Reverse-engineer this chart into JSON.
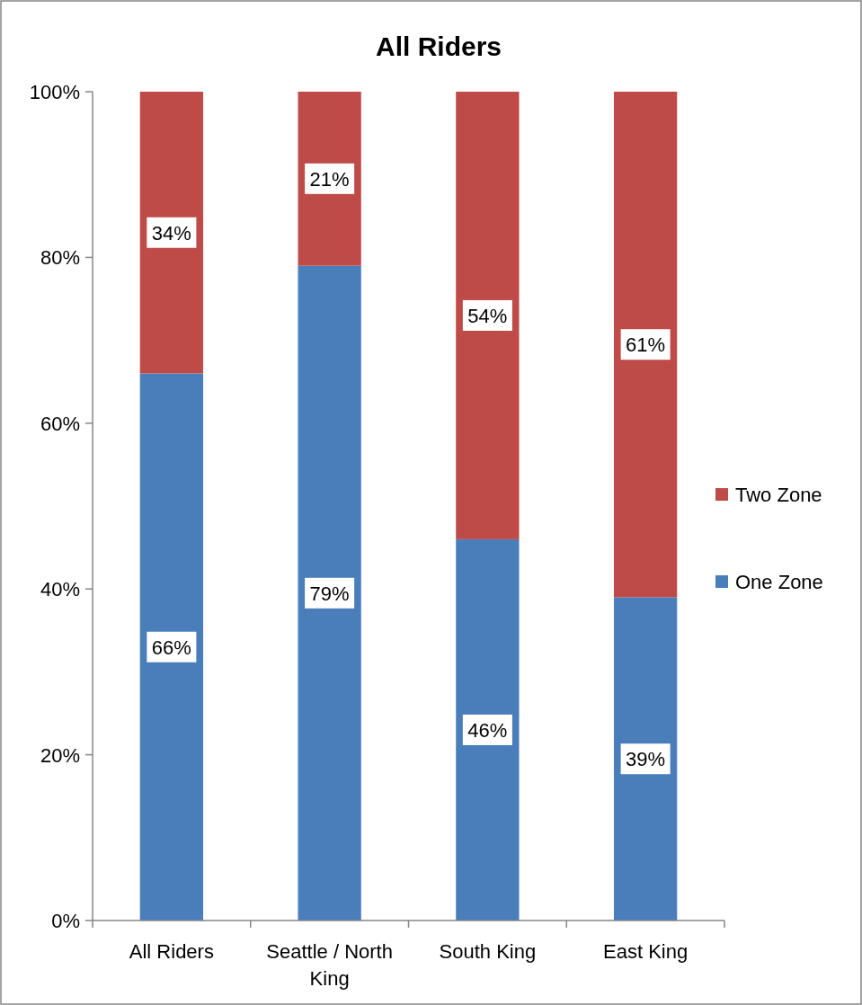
{
  "chart_data": {
    "type": "bar",
    "title": "All Riders",
    "stacked": true,
    "categories": [
      "All Riders",
      "Seattle / North King",
      "South King",
      "East King"
    ],
    "series": [
      {
        "name": "One Zone",
        "color": "#4a7ebb",
        "values": [
          66,
          79,
          46,
          39
        ],
        "value_labels": [
          "66%",
          "79%",
          "46%",
          "39%"
        ]
      },
      {
        "name": "Two Zone",
        "color": "#be4b48",
        "values": [
          34,
          21,
          54,
          61
        ],
        "value_labels": [
          "34%",
          "21%",
          "54%",
          "61%"
        ]
      }
    ],
    "ylim": [
      0,
      100
    ],
    "yticks": [
      {
        "value": 0,
        "label": "0%"
      },
      {
        "value": 20,
        "label": "20%"
      },
      {
        "value": 40,
        "label": "40%"
      },
      {
        "value": 60,
        "label": "60%"
      },
      {
        "value": 80,
        "label": "80%"
      },
      {
        "value": 100,
        "label": "100%"
      }
    ],
    "legend": "right",
    "grid": false
  }
}
